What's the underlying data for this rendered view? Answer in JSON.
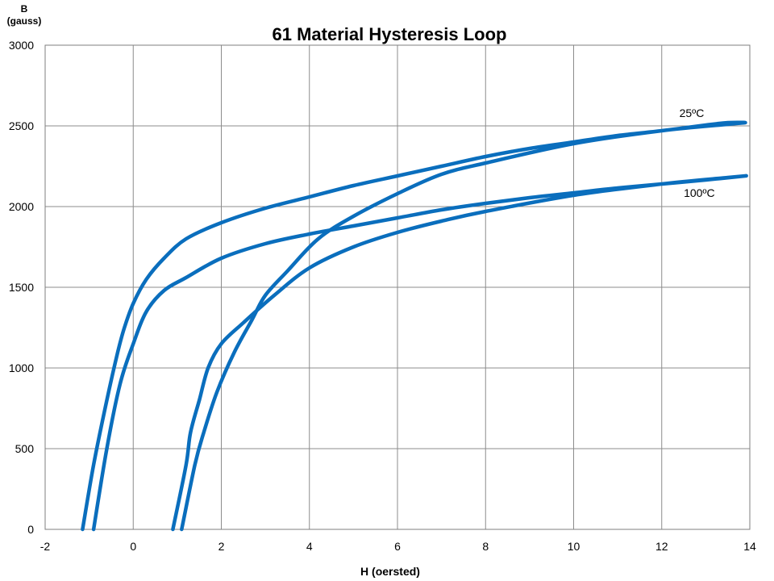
{
  "chart_data": {
    "type": "line",
    "title": "61 Material Hysteresis Loop",
    "xlabel": "H (oersted)",
    "ylabel_line1": "B",
    "ylabel_line2": "(gauss)",
    "xlim": [
      -2,
      14
    ],
    "ylim": [
      0,
      3000
    ],
    "xticks": [
      -2,
      0,
      2,
      4,
      6,
      8,
      10,
      12,
      14
    ],
    "yticks": [
      0,
      500,
      1000,
      1500,
      2000,
      2500,
      3000
    ],
    "grid": true,
    "legend": "none",
    "color": "#0a6ebd",
    "series": [
      {
        "name": "25ºC",
        "label_position": [
          12.4,
          2555
        ],
        "points": [
          [
            -1.15,
            0
          ],
          [
            -0.9,
            400
          ],
          [
            -0.6,
            800
          ],
          [
            -0.35,
            1100
          ],
          [
            -0.2,
            1250
          ],
          [
            0,
            1400
          ],
          [
            0.3,
            1550
          ],
          [
            0.7,
            1680
          ],
          [
            1.2,
            1800
          ],
          [
            2,
            1900
          ],
          [
            3,
            1990
          ],
          [
            4,
            2060
          ],
          [
            5,
            2130
          ],
          [
            6,
            2190
          ],
          [
            7,
            2250
          ],
          [
            8,
            2310
          ],
          [
            9,
            2360
          ],
          [
            10,
            2400
          ],
          [
            11,
            2440
          ],
          [
            12,
            2470
          ],
          [
            13,
            2505
          ],
          [
            13.5,
            2520
          ],
          [
            13.9,
            2520
          ],
          [
            13.5,
            2510
          ],
          [
            12,
            2470
          ],
          [
            10,
            2390
          ],
          [
            8,
            2270
          ],
          [
            7,
            2200
          ],
          [
            6,
            2080
          ],
          [
            5,
            1940
          ],
          [
            4.2,
            1800
          ],
          [
            3.5,
            1600
          ],
          [
            3,
            1450
          ],
          [
            2.7,
            1300
          ],
          [
            2.3,
            1100
          ],
          [
            1.9,
            850
          ],
          [
            1.6,
            600
          ],
          [
            1.4,
            400
          ],
          [
            1.1,
            0
          ]
        ]
      },
      {
        "name": "100ºC",
        "label_position": [
          12.5,
          2060
        ],
        "points": [
          [
            -0.9,
            0
          ],
          [
            -0.6,
            500
          ],
          [
            -0.3,
            900
          ],
          [
            0,
            1150
          ],
          [
            0.3,
            1350
          ],
          [
            0.7,
            1480
          ],
          [
            1.2,
            1560
          ],
          [
            2,
            1680
          ],
          [
            3,
            1770
          ],
          [
            4,
            1830
          ],
          [
            5,
            1880
          ],
          [
            6,
            1930
          ],
          [
            7,
            1980
          ],
          [
            8,
            2020
          ],
          [
            9,
            2055
          ],
          [
            10,
            2085
          ],
          [
            11,
            2115
          ],
          [
            12,
            2140
          ],
          [
            13,
            2165
          ],
          [
            13.9,
            2190
          ],
          [
            13.5,
            2180
          ],
          [
            12,
            2140
          ],
          [
            10,
            2070
          ],
          [
            8,
            1970
          ],
          [
            7,
            1910
          ],
          [
            6,
            1840
          ],
          [
            5,
            1750
          ],
          [
            4,
            1620
          ],
          [
            3.2,
            1450
          ],
          [
            2.5,
            1280
          ],
          [
            2,
            1150
          ],
          [
            1.7,
            1000
          ],
          [
            1.5,
            800
          ],
          [
            1.3,
            600
          ],
          [
            1.2,
            400
          ],
          [
            0.9,
            0
          ]
        ]
      }
    ]
  }
}
